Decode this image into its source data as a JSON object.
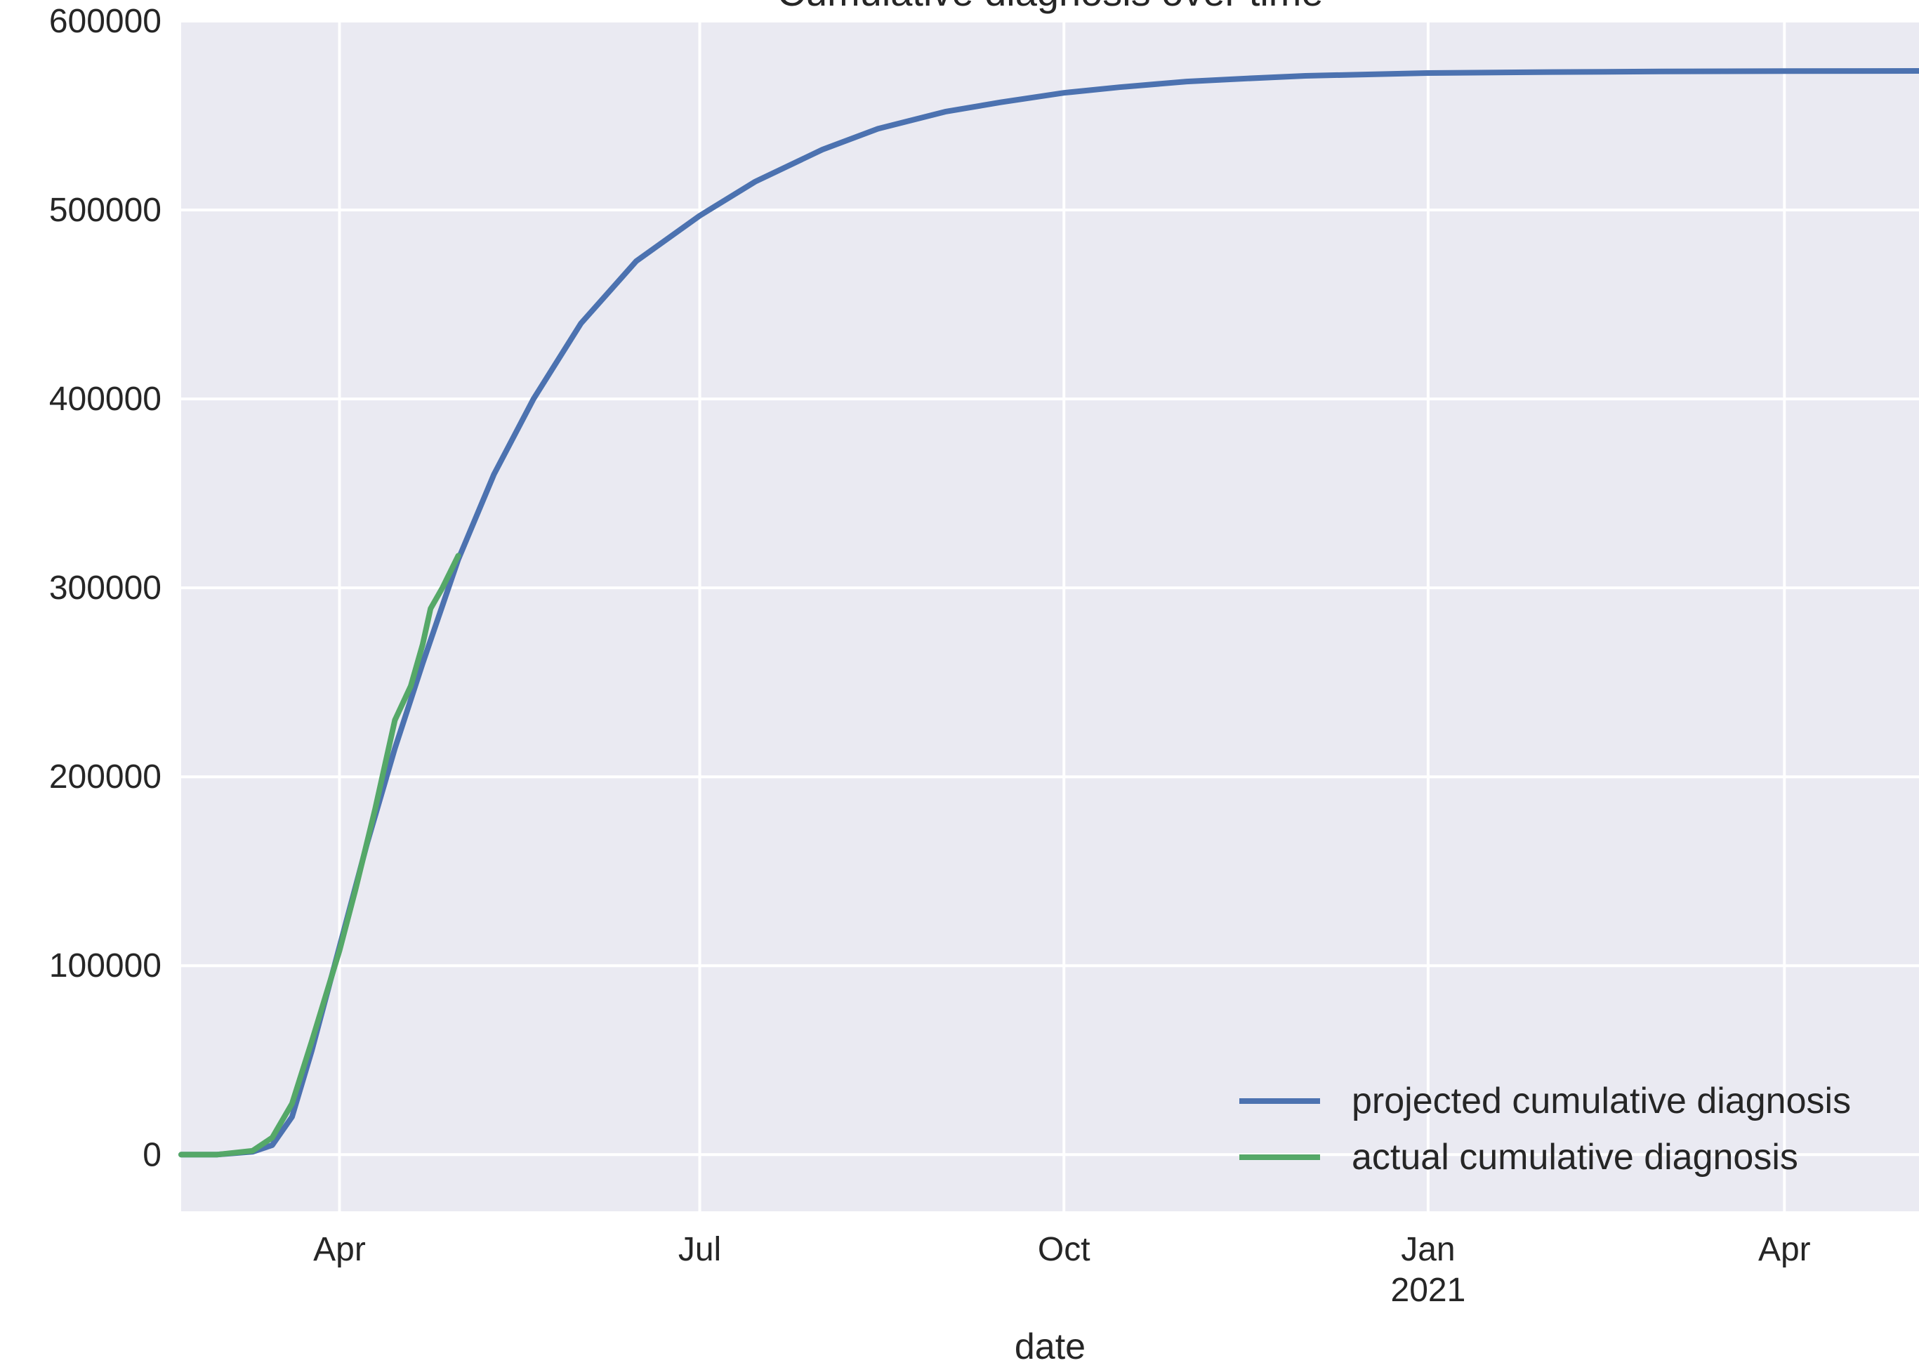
{
  "chart_data": {
    "type": "line",
    "title": "Cumulative diagnosis over time",
    "xlabel": "date",
    "ylabel": "",
    "ylim": [
      -30000,
      600000
    ],
    "xlim": [
      "2020-02-21",
      "2021-05-05"
    ],
    "grid": true,
    "legend_position": "lower-right",
    "background_color": "#eaeaf2",
    "grid_color": "#ffffff",
    "y_ticks": [
      {
        "value": 0,
        "label": "0"
      },
      {
        "value": 100000,
        "label": "100000"
      },
      {
        "value": 200000,
        "label": "200000"
      },
      {
        "value": 300000,
        "label": "300000"
      },
      {
        "value": 400000,
        "label": "400000"
      },
      {
        "value": 500000,
        "label": "500000"
      },
      {
        "value": 600000,
        "label": "600000"
      }
    ],
    "x_ticks": [
      {
        "date": "2020-04-01",
        "label": "Apr",
        "sublabel": ""
      },
      {
        "date": "2020-07-01",
        "label": "Jul",
        "sublabel": ""
      },
      {
        "date": "2020-10-01",
        "label": "Oct",
        "sublabel": ""
      },
      {
        "date": "2021-01-01",
        "label": "Jan",
        "sublabel": "2021"
      },
      {
        "date": "2021-04-01",
        "label": "Apr",
        "sublabel": ""
      }
    ],
    "series": [
      {
        "name": "projected cumulative diagnosis",
        "color": "#4c72b0",
        "points": [
          [
            "2020-02-21",
            0
          ],
          [
            "2020-03-01",
            0
          ],
          [
            "2020-03-10",
            1500
          ],
          [
            "2020-03-15",
            5000
          ],
          [
            "2020-03-20",
            20000
          ],
          [
            "2020-03-25",
            55000
          ],
          [
            "2020-04-01",
            110000
          ],
          [
            "2020-04-08",
            165000
          ],
          [
            "2020-04-15",
            215000
          ],
          [
            "2020-04-22",
            260000
          ],
          [
            "2020-05-01",
            315000
          ],
          [
            "2020-05-10",
            360000
          ],
          [
            "2020-05-20",
            400000
          ],
          [
            "2020-06-01",
            440000
          ],
          [
            "2020-06-15",
            473000
          ],
          [
            "2020-07-01",
            497000
          ],
          [
            "2020-07-15",
            515000
          ],
          [
            "2020-08-01",
            532000
          ],
          [
            "2020-08-15",
            543000
          ],
          [
            "2020-09-01",
            552000
          ],
          [
            "2020-09-15",
            557000
          ],
          [
            "2020-10-01",
            562000
          ],
          [
            "2020-10-15",
            565000
          ],
          [
            "2020-11-01",
            568000
          ],
          [
            "2020-11-15",
            569500
          ],
          [
            "2020-12-01",
            571000
          ],
          [
            "2021-01-01",
            572500
          ],
          [
            "2021-02-01",
            573000
          ],
          [
            "2021-03-01",
            573300
          ],
          [
            "2021-04-01",
            573500
          ],
          [
            "2021-05-05",
            573600
          ]
        ]
      },
      {
        "name": "actual cumulative diagnosis",
        "color": "#55a868",
        "points": [
          [
            "2020-02-21",
            0
          ],
          [
            "2020-03-01",
            0
          ],
          [
            "2020-03-10",
            2000
          ],
          [
            "2020-03-15",
            9000
          ],
          [
            "2020-03-20",
            27000
          ],
          [
            "2020-03-25",
            60000
          ],
          [
            "2020-04-01",
            108000
          ],
          [
            "2020-04-05",
            140000
          ],
          [
            "2020-04-10",
            183000
          ],
          [
            "2020-04-15",
            230000
          ],
          [
            "2020-04-19",
            248000
          ],
          [
            "2020-04-22",
            270000
          ],
          [
            "2020-04-24",
            289000
          ],
          [
            "2020-04-27",
            300000
          ],
          [
            "2020-05-01",
            317000
          ]
        ]
      }
    ]
  }
}
